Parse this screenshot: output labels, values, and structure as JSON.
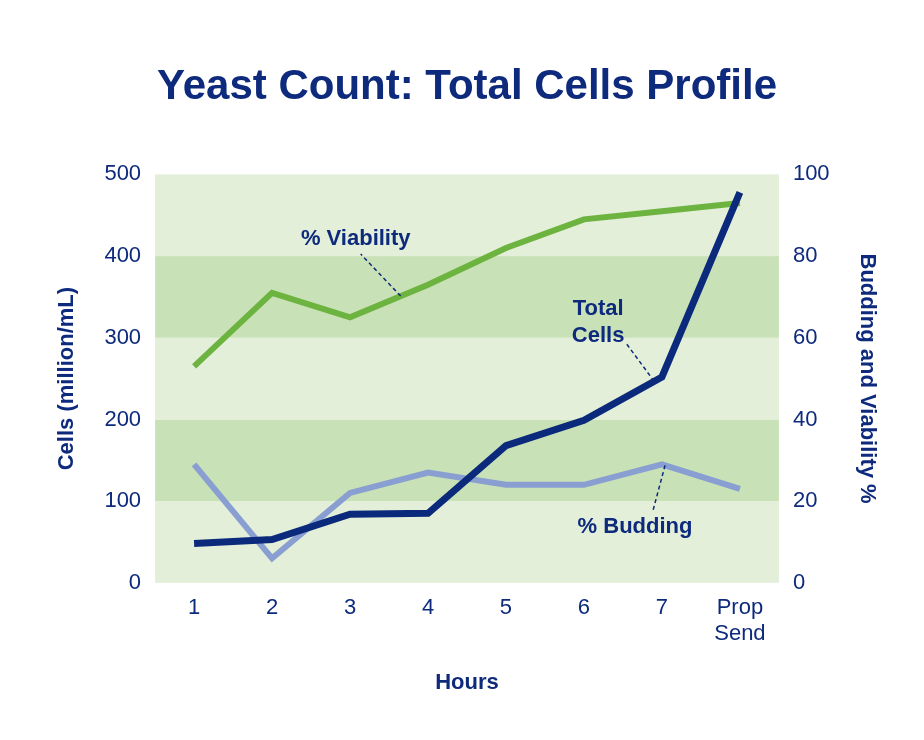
{
  "chart_data": {
    "type": "line",
    "title": "Yeast Count: Total Cells Profile",
    "x_label": "Hours",
    "y_label": "Cells (million/mL)",
    "y2_label": "Budding and Viability %",
    "categories": [
      "1",
      "2",
      "3",
      "4",
      "5",
      "6",
      "7",
      "Prop Send"
    ],
    "series": [
      {
        "name": "Total Cells",
        "color": "#0c2a7c",
        "values": [
          48,
          53,
          84,
          85,
          168,
          199,
          252,
          478
        ]
      },
      {
        "name": "% Viability",
        "color": "#6db33f",
        "axis": "y2",
        "values": [
          53,
          71,
          65,
          73,
          82,
          89,
          91,
          93
        ]
      },
      {
        "name": "% Budding",
        "color": "#8a9fd1",
        "axis": "y2",
        "values": [
          29,
          6,
          22,
          27,
          24,
          24,
          29,
          23
        ]
      }
    ],
    "ylim": [
      0,
      500
    ],
    "yticks": [
      0,
      100,
      200,
      300,
      400,
      500
    ],
    "y2lim": [
      0,
      100
    ],
    "y2ticks": [
      0,
      20,
      40,
      60,
      80,
      100
    ],
    "grid": false
  }
}
